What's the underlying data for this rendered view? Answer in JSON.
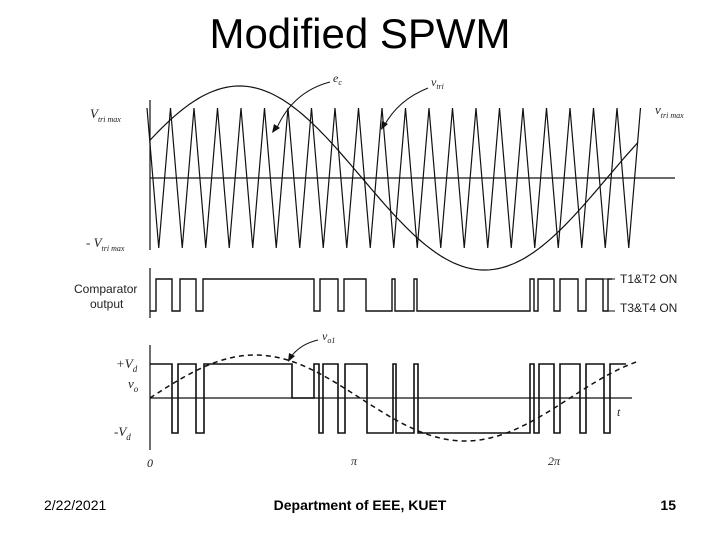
{
  "slide": {
    "title": "Modified SPWM",
    "footer_date": "2/22/2021",
    "footer_dept": "Department of EEE, KUET",
    "page_number": "15"
  },
  "diagram": {
    "labels": {
      "ec": "e",
      "ec_sub": "c",
      "vtri": "v",
      "vtri_sub": "tri",
      "vtri_max_left": "V",
      "vtri_max_left_sub": "tri max",
      "neg_vtri_max": "- V",
      "neg_vtri_max_sub": "tri max",
      "vtri_max_right": "v",
      "vtri_max_right_sub": "tri max",
      "comparator_line1": "Comparator",
      "comparator_line2": "output",
      "t1t2_on": "T1&T2 ON",
      "t3t4_on": "T3&T4 ON",
      "vo1": "v",
      "vo1_sub": "o1",
      "plus_vd": "+V",
      "plus_vd_sub": "d",
      "vo": "v",
      "vo_sub": "o",
      "minus_vd": "-V",
      "minus_vd_sub": "d",
      "t": "t",
      "zero": "0",
      "pi": "π",
      "two_pi": "2π"
    },
    "colors": {
      "ink": "#111111"
    }
  }
}
